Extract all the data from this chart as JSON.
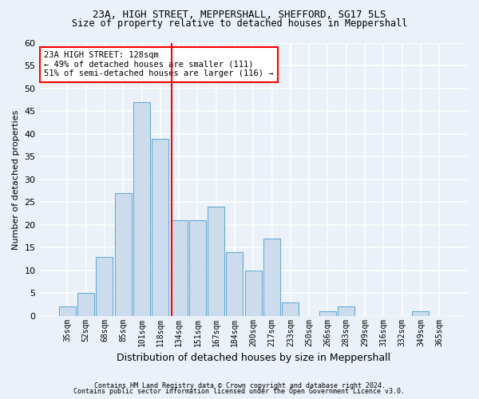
{
  "title1": "23A, HIGH STREET, MEPPERSHALL, SHEFFORD, SG17 5LS",
  "title2": "Size of property relative to detached houses in Meppershall",
  "xlabel": "Distribution of detached houses by size in Meppershall",
  "ylabel": "Number of detached properties",
  "categories": [
    "35sqm",
    "52sqm",
    "68sqm",
    "85sqm",
    "101sqm",
    "118sqm",
    "134sqm",
    "151sqm",
    "167sqm",
    "184sqm",
    "200sqm",
    "217sqm",
    "233sqm",
    "250sqm",
    "266sqm",
    "283sqm",
    "299sqm",
    "316sqm",
    "332sqm",
    "349sqm",
    "365sqm"
  ],
  "values": [
    2,
    5,
    13,
    27,
    47,
    39,
    21,
    21,
    24,
    14,
    10,
    17,
    3,
    0,
    1,
    2,
    0,
    0,
    0,
    1,
    0
  ],
  "bar_color": "#ccdcec",
  "bar_edge_color": "#6aaad4",
  "vline_x": 5.6,
  "vline_color": "red",
  "annotation_text": "23A HIGH STREET: 128sqm\n← 49% of detached houses are smaller (111)\n51% of semi-detached houses are larger (116) →",
  "annotation_box_color": "white",
  "annotation_box_edge": "red",
  "ylim": [
    0,
    60
  ],
  "footer1": "Contains HM Land Registry data © Crown copyright and database right 2024.",
  "footer2": "Contains public sector information licensed under the Open Government Licence v3.0.",
  "bg_color": "#eaf1f8",
  "plot_bg_color": "#eaf1f8",
  "grid_color": "white",
  "title1_fontsize": 9,
  "title2_fontsize": 8.5,
  "ylabel_fontsize": 8,
  "xlabel_fontsize": 9,
  "annot_fontsize": 7.5,
  "tick_fontsize": 7
}
